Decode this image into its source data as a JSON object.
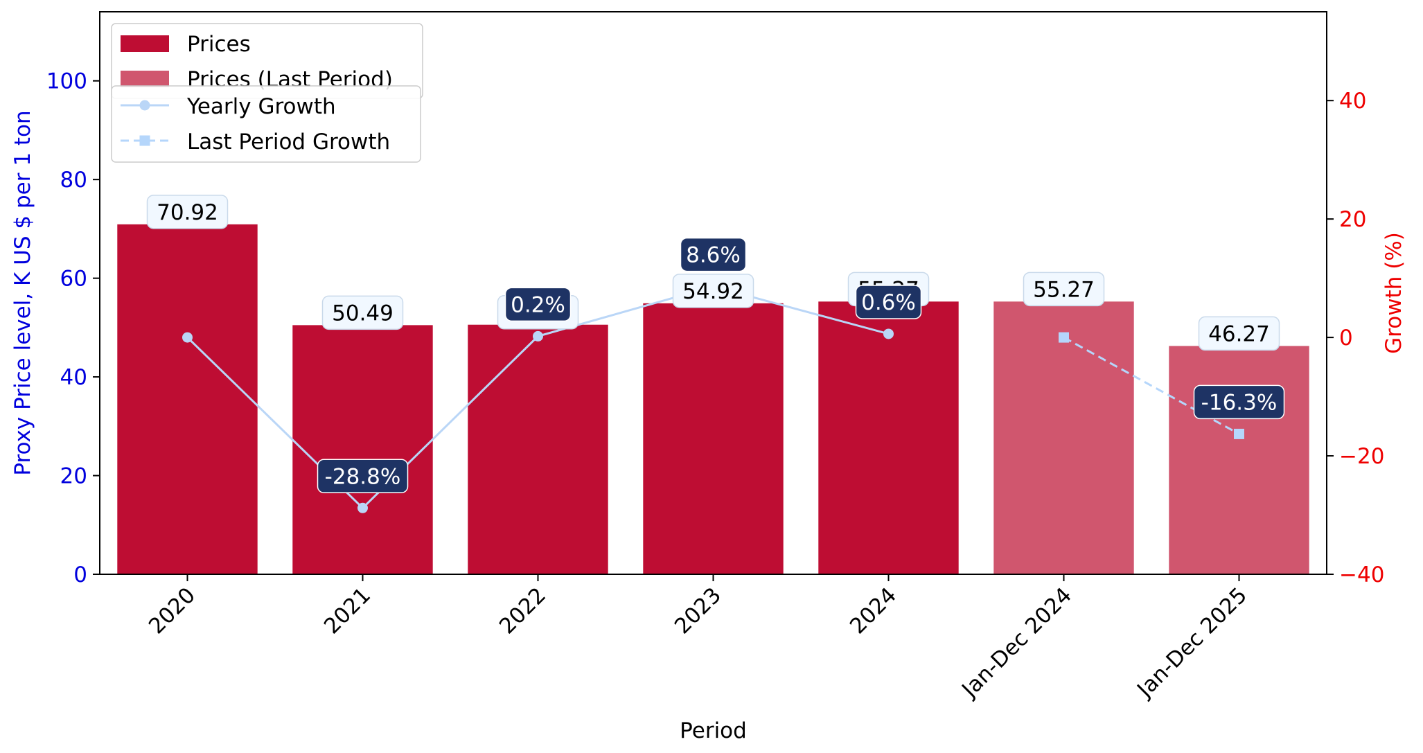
{
  "chart_data": {
    "type": "bar",
    "categories": [
      "2020",
      "2021",
      "2022",
      "2023",
      "2024",
      "Jan-Dec 2024",
      "Jan-Dec 2025"
    ],
    "xlabel": "Period",
    "ylabel": "Proxy Price level, K US $ per 1 ton",
    "ylabel_right": "Growth (%)",
    "ylim": [
      0,
      114
    ],
    "ylim_right": [
      -40,
      55
    ],
    "yticks": [
      0,
      20,
      40,
      60,
      80,
      100
    ],
    "yticks_right": [
      -40,
      -20,
      0,
      20,
      40
    ],
    "bars": [
      {
        "name": "Prices",
        "categories": [
          "2020",
          "2021",
          "2022",
          "2023",
          "2024"
        ],
        "values": [
          70.92,
          50.49,
          50.58,
          54.92,
          55.27
        ],
        "labels": [
          "70.92",
          "50.49",
          "50.58",
          "54.92",
          "55.27"
        ]
      },
      {
        "name": "Prices (Last Period)",
        "categories": [
          "Jan-Dec 2024",
          "Jan-Dec 2025"
        ],
        "values": [
          55.27,
          46.27
        ],
        "labels": [
          "55.27",
          "46.27"
        ]
      }
    ],
    "lines": [
      {
        "name": "Yearly Growth",
        "categories": [
          "2020",
          "2021",
          "2022",
          "2023",
          "2024"
        ],
        "values": [
          0.0,
          -28.8,
          0.2,
          8.6,
          0.6
        ],
        "labels": [
          null,
          "-28.8%",
          "0.2%",
          "8.6%",
          "0.6%"
        ]
      },
      {
        "name": "Last Period Growth",
        "categories": [
          "Jan-Dec 2024",
          "Jan-Dec 2025"
        ],
        "values": [
          0.0,
          -16.3
        ],
        "labels": [
          null,
          "-16.3%"
        ]
      }
    ],
    "legend_position": "top-left",
    "colors": {
      "prices": "#be0d33",
      "prices_last": "#d0566e",
      "yearly_growth": "#bad6f7",
      "last_growth": "#b5d6fb",
      "left_axis": "#0000dd",
      "right_axis": "#ee0000",
      "growth_label_bg": "#1e3364",
      "value_label_bg": "#f1f8ff"
    }
  }
}
